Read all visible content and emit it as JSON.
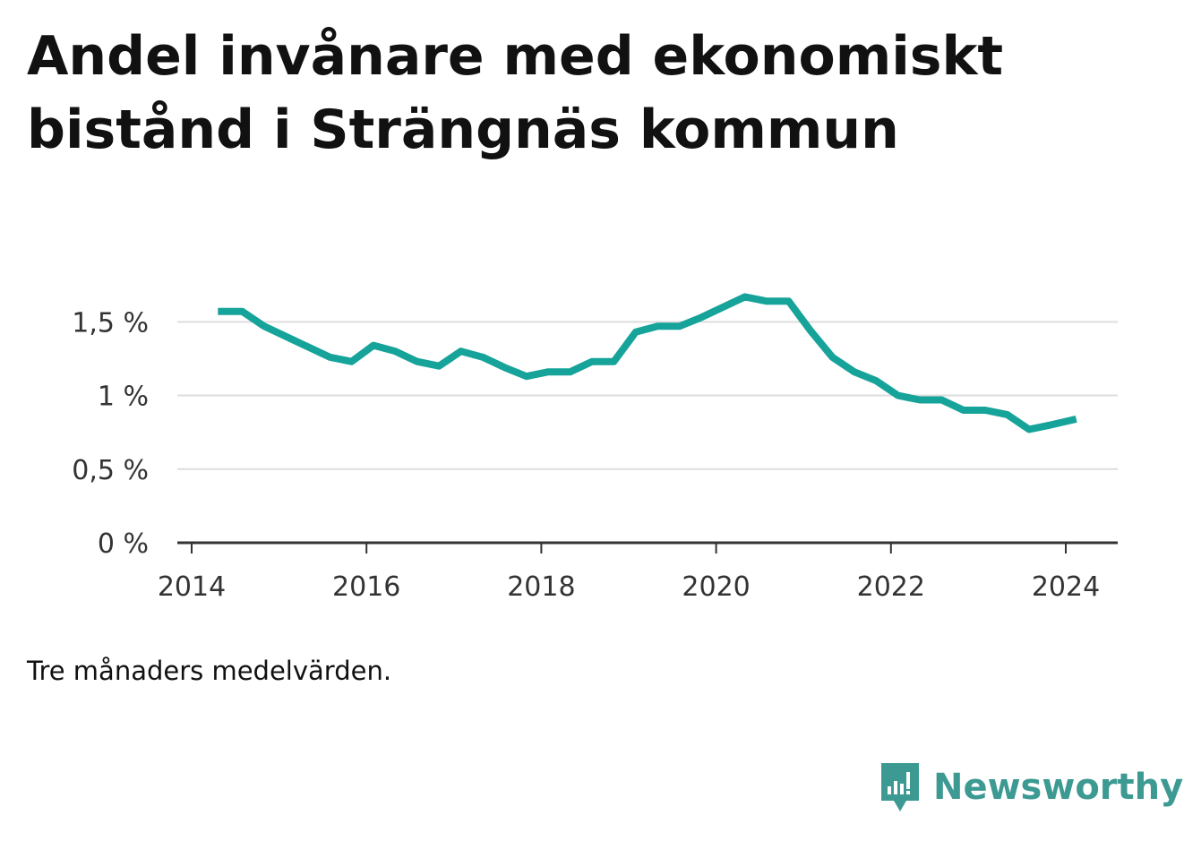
{
  "title": "Andel invånare med ekonomiskt bistånd i Strängnäs kommun",
  "note": "Tre månaders medelvärden.",
  "brand": {
    "name": "Newsworthy",
    "icon": "newsworthy-logo-icon",
    "color": "#3d9a93"
  },
  "colors": {
    "line": "#16a39a",
    "grid": "#dddddd",
    "axis": "#333333"
  },
  "chart_data": {
    "type": "line",
    "title": "Andel invånare med ekonomiskt bistånd i Strängnäs kommun",
    "xlabel": "",
    "ylabel": "",
    "xlim": [
      2014.0,
      2024.5
    ],
    "ylim": [
      0,
      1.8
    ],
    "y_ticks": [
      {
        "value": 0,
        "label": "0 %"
      },
      {
        "value": 0.5,
        "label": "0,5 %"
      },
      {
        "value": 1,
        "label": "1 %"
      },
      {
        "value": 1.5,
        "label": "1,5 %"
      }
    ],
    "x_ticks": [
      {
        "value": 2014,
        "label": "2014"
      },
      {
        "value": 2016,
        "label": "2016"
      },
      {
        "value": 2018,
        "label": "2018"
      },
      {
        "value": 2020,
        "label": "2020"
      },
      {
        "value": 2022,
        "label": "2022"
      },
      {
        "value": 2024,
        "label": "2024"
      }
    ],
    "grid": true,
    "series": [
      {
        "x": [
          2014.3,
          2014.58,
          2014.83,
          2015.08,
          2015.33,
          2015.58,
          2015.83,
          2016.08,
          2016.33,
          2016.58,
          2016.83,
          2017.08,
          2017.33,
          2017.58,
          2017.83,
          2018.08,
          2018.33,
          2018.58,
          2018.83,
          2019.08,
          2019.33,
          2019.58,
          2019.83,
          2020.08,
          2020.33,
          2020.58,
          2020.83,
          2021.08,
          2021.33,
          2021.58,
          2021.83,
          2022.08,
          2022.33,
          2022.58,
          2022.83,
          2023.08,
          2023.33,
          2023.58,
          2023.83,
          2024.12
        ],
        "y": [
          1.57,
          1.57,
          1.47,
          1.4,
          1.33,
          1.26,
          1.23,
          1.34,
          1.3,
          1.23,
          1.2,
          1.3,
          1.26,
          1.19,
          1.13,
          1.16,
          1.16,
          1.23,
          1.23,
          1.43,
          1.47,
          1.47,
          1.53,
          1.6,
          1.67,
          1.64,
          1.64,
          1.44,
          1.26,
          1.16,
          1.1,
          1.0,
          0.97,
          0.97,
          0.9,
          0.9,
          0.87,
          0.77,
          0.8,
          0.84
        ]
      }
    ]
  }
}
